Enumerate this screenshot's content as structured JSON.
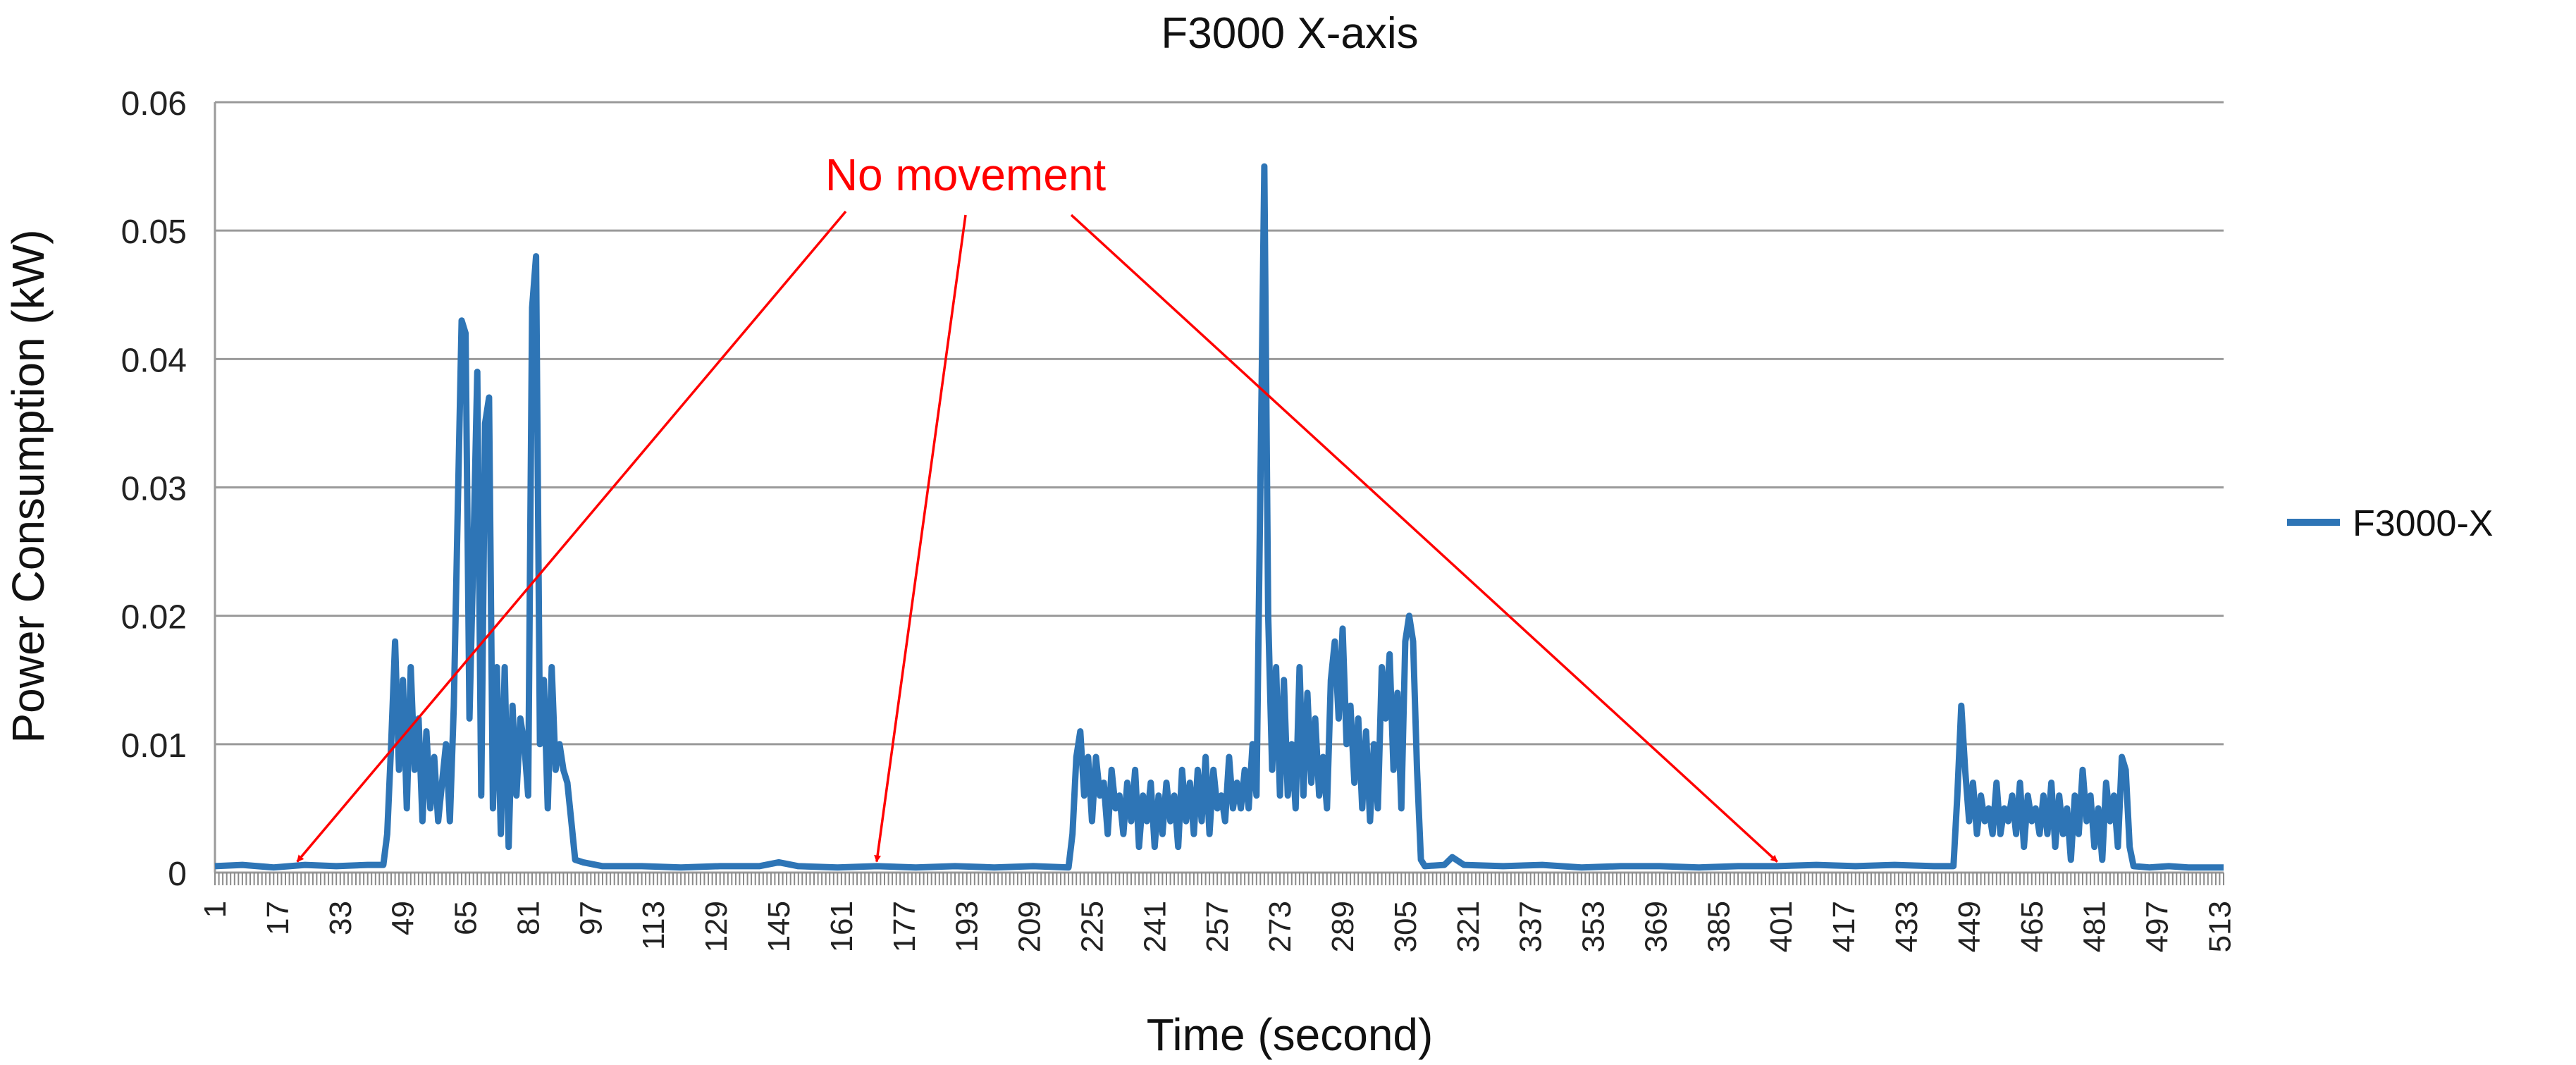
{
  "chart_data": {
    "type": "line",
    "title": "F3000 X-axis",
    "xlabel": "Time (second)",
    "ylabel": "Power Consumption (kW)",
    "x_range": [
      1,
      514
    ],
    "ylim": [
      0,
      0.06
    ],
    "y_ticks": [
      "0",
      "0.01",
      "0.02",
      "0.03",
      "0.04",
      "0.05",
      "0.06"
    ],
    "x_tick_labels": [
      "1",
      "17",
      "33",
      "49",
      "65",
      "81",
      "97",
      "113",
      "129",
      "145",
      "161",
      "177",
      "193",
      "209",
      "225",
      "241",
      "257",
      "273",
      "289",
      "305",
      "321",
      "337",
      "353",
      "369",
      "385",
      "401",
      "417",
      "433",
      "449",
      "465",
      "481",
      "497",
      "513"
    ],
    "grid": true,
    "legend_position": "right",
    "series": [
      {
        "name": "F3000-X",
        "color": "#2e75b6",
        "points": [
          [
            1,
            0.0005
          ],
          [
            8,
            0.0006
          ],
          [
            16,
            0.0004
          ],
          [
            24,
            0.0006
          ],
          [
            32,
            0.0005
          ],
          [
            40,
            0.0006
          ],
          [
            44,
            0.0006
          ],
          [
            45,
            0.003
          ],
          [
            46,
            0.01
          ],
          [
            47,
            0.018
          ],
          [
            48,
            0.008
          ],
          [
            49,
            0.015
          ],
          [
            50,
            0.005
          ],
          [
            51,
            0.016
          ],
          [
            52,
            0.008
          ],
          [
            53,
            0.012
          ],
          [
            54,
            0.004
          ],
          [
            55,
            0.011
          ],
          [
            56,
            0.005
          ],
          [
            57,
            0.009
          ],
          [
            58,
            0.004
          ],
          [
            59,
            0.007
          ],
          [
            60,
            0.01
          ],
          [
            61,
            0.004
          ],
          [
            62,
            0.013
          ],
          [
            63,
            0.028
          ],
          [
            64,
            0.043
          ],
          [
            65,
            0.042
          ],
          [
            66,
            0.012
          ],
          [
            67,
            0.025
          ],
          [
            68,
            0.039
          ],
          [
            69,
            0.006
          ],
          [
            70,
            0.035
          ],
          [
            71,
            0.037
          ],
          [
            72,
            0.005
          ],
          [
            73,
            0.016
          ],
          [
            74,
            0.003
          ],
          [
            75,
            0.016
          ],
          [
            76,
            0.002
          ],
          [
            77,
            0.013
          ],
          [
            78,
            0.006
          ],
          [
            79,
            0.012
          ],
          [
            80,
            0.01
          ],
          [
            81,
            0.006
          ],
          [
            82,
            0.044
          ],
          [
            83,
            0.048
          ],
          [
            84,
            0.01
          ],
          [
            85,
            0.015
          ],
          [
            86,
            0.005
          ],
          [
            87,
            0.016
          ],
          [
            88,
            0.008
          ],
          [
            89,
            0.01
          ],
          [
            90,
            0.008
          ],
          [
            91,
            0.007
          ],
          [
            92,
            0.004
          ],
          [
            93,
            0.001
          ],
          [
            95,
            0.0008
          ],
          [
            100,
            0.0005
          ],
          [
            110,
            0.0005
          ],
          [
            120,
            0.0004
          ],
          [
            130,
            0.0005
          ],
          [
            140,
            0.0005
          ],
          [
            145,
            0.0008
          ],
          [
            150,
            0.0005
          ],
          [
            160,
            0.0004
          ],
          [
            170,
            0.0005
          ],
          [
            180,
            0.0004
          ],
          [
            190,
            0.0005
          ],
          [
            200,
            0.0004
          ],
          [
            210,
            0.0005
          ],
          [
            219,
            0.0004
          ],
          [
            220,
            0.003
          ],
          [
            221,
            0.009
          ],
          [
            222,
            0.011
          ],
          [
            223,
            0.006
          ],
          [
            224,
            0.009
          ],
          [
            225,
            0.004
          ],
          [
            226,
            0.009
          ],
          [
            227,
            0.006
          ],
          [
            228,
            0.007
          ],
          [
            229,
            0.003
          ],
          [
            230,
            0.008
          ],
          [
            231,
            0.005
          ],
          [
            232,
            0.006
          ],
          [
            233,
            0.003
          ],
          [
            234,
            0.007
          ],
          [
            235,
            0.004
          ],
          [
            236,
            0.008
          ],
          [
            237,
            0.002
          ],
          [
            238,
            0.006
          ],
          [
            239,
            0.004
          ],
          [
            240,
            0.007
          ],
          [
            241,
            0.002
          ],
          [
            242,
            0.006
          ],
          [
            243,
            0.003
          ],
          [
            244,
            0.007
          ],
          [
            245,
            0.004
          ],
          [
            246,
            0.006
          ],
          [
            247,
            0.002
          ],
          [
            248,
            0.008
          ],
          [
            249,
            0.004
          ],
          [
            250,
            0.007
          ],
          [
            251,
            0.003
          ],
          [
            252,
            0.008
          ],
          [
            253,
            0.004
          ],
          [
            254,
            0.009
          ],
          [
            255,
            0.003
          ],
          [
            256,
            0.008
          ],
          [
            257,
            0.005
          ],
          [
            258,
            0.006
          ],
          [
            259,
            0.004
          ],
          [
            260,
            0.009
          ],
          [
            261,
            0.005
          ],
          [
            262,
            0.007
          ],
          [
            263,
            0.005
          ],
          [
            264,
            0.008
          ],
          [
            265,
            0.005
          ],
          [
            266,
            0.01
          ],
          [
            267,
            0.006
          ],
          [
            268,
            0.03
          ],
          [
            269,
            0.055
          ],
          [
            270,
            0.02
          ],
          [
            271,
            0.008
          ],
          [
            272,
            0.016
          ],
          [
            273,
            0.006
          ],
          [
            274,
            0.015
          ],
          [
            275,
            0.006
          ],
          [
            276,
            0.01
          ],
          [
            277,
            0.005
          ],
          [
            278,
            0.016
          ],
          [
            279,
            0.006
          ],
          [
            280,
            0.014
          ],
          [
            281,
            0.007
          ],
          [
            282,
            0.012
          ],
          [
            283,
            0.006
          ],
          [
            284,
            0.009
          ],
          [
            285,
            0.005
          ],
          [
            286,
            0.015
          ],
          [
            287,
            0.018
          ],
          [
            288,
            0.012
          ],
          [
            289,
            0.019
          ],
          [
            290,
            0.01
          ],
          [
            291,
            0.013
          ],
          [
            292,
            0.007
          ],
          [
            293,
            0.012
          ],
          [
            294,
            0.005
          ],
          [
            295,
            0.011
          ],
          [
            296,
            0.004
          ],
          [
            297,
            0.01
          ],
          [
            298,
            0.005
          ],
          [
            299,
            0.016
          ],
          [
            300,
            0.012
          ],
          [
            301,
            0.017
          ],
          [
            302,
            0.008
          ],
          [
            303,
            0.014
          ],
          [
            304,
            0.005
          ],
          [
            305,
            0.018
          ],
          [
            306,
            0.02
          ],
          [
            307,
            0.018
          ],
          [
            308,
            0.008
          ],
          [
            309,
            0.001
          ],
          [
            310,
            0.0005
          ],
          [
            315,
            0.0006
          ],
          [
            317,
            0.0012
          ],
          [
            320,
            0.0006
          ],
          [
            330,
            0.0005
          ],
          [
            340,
            0.0006
          ],
          [
            350,
            0.0004
          ],
          [
            360,
            0.0005
          ],
          [
            370,
            0.0005
          ],
          [
            380,
            0.0004
          ],
          [
            390,
            0.0005
          ],
          [
            400,
            0.0005
          ],
          [
            410,
            0.0006
          ],
          [
            420,
            0.0005
          ],
          [
            430,
            0.0006
          ],
          [
            440,
            0.0005
          ],
          [
            445,
            0.0005
          ],
          [
            446,
            0.006
          ],
          [
            447,
            0.013
          ],
          [
            448,
            0.008
          ],
          [
            449,
            0.004
          ],
          [
            450,
            0.007
          ],
          [
            451,
            0.003
          ],
          [
            452,
            0.006
          ],
          [
            453,
            0.004
          ],
          [
            454,
            0.005
          ],
          [
            455,
            0.003
          ],
          [
            456,
            0.007
          ],
          [
            457,
            0.003
          ],
          [
            458,
            0.005
          ],
          [
            459,
            0.004
          ],
          [
            460,
            0.006
          ],
          [
            461,
            0.003
          ],
          [
            462,
            0.007
          ],
          [
            463,
            0.002
          ],
          [
            464,
            0.006
          ],
          [
            465,
            0.004
          ],
          [
            466,
            0.005
          ],
          [
            467,
            0.003
          ],
          [
            468,
            0.006
          ],
          [
            469,
            0.003
          ],
          [
            470,
            0.007
          ],
          [
            471,
            0.002
          ],
          [
            472,
            0.006
          ],
          [
            473,
            0.003
          ],
          [
            474,
            0.005
          ],
          [
            475,
            0.001
          ],
          [
            476,
            0.006
          ],
          [
            477,
            0.003
          ],
          [
            478,
            0.008
          ],
          [
            479,
            0.004
          ],
          [
            480,
            0.006
          ],
          [
            481,
            0.002
          ],
          [
            482,
            0.005
          ],
          [
            483,
            0.001
          ],
          [
            484,
            0.007
          ],
          [
            485,
            0.004
          ],
          [
            486,
            0.006
          ],
          [
            487,
            0.002
          ],
          [
            488,
            0.009
          ],
          [
            489,
            0.008
          ],
          [
            490,
            0.002
          ],
          [
            491,
            0.0005
          ],
          [
            495,
            0.0004
          ],
          [
            500,
            0.0005
          ],
          [
            505,
            0.0004
          ],
          [
            514,
            0.0004
          ]
        ]
      }
    ],
    "annotation": {
      "text": "No movement",
      "color": "#ff0000",
      "arrow_targets": [
        [
          22,
          0.0003
        ],
        [
          170,
          0.0003
        ],
        [
          400,
          0.0003
        ]
      ]
    }
  }
}
